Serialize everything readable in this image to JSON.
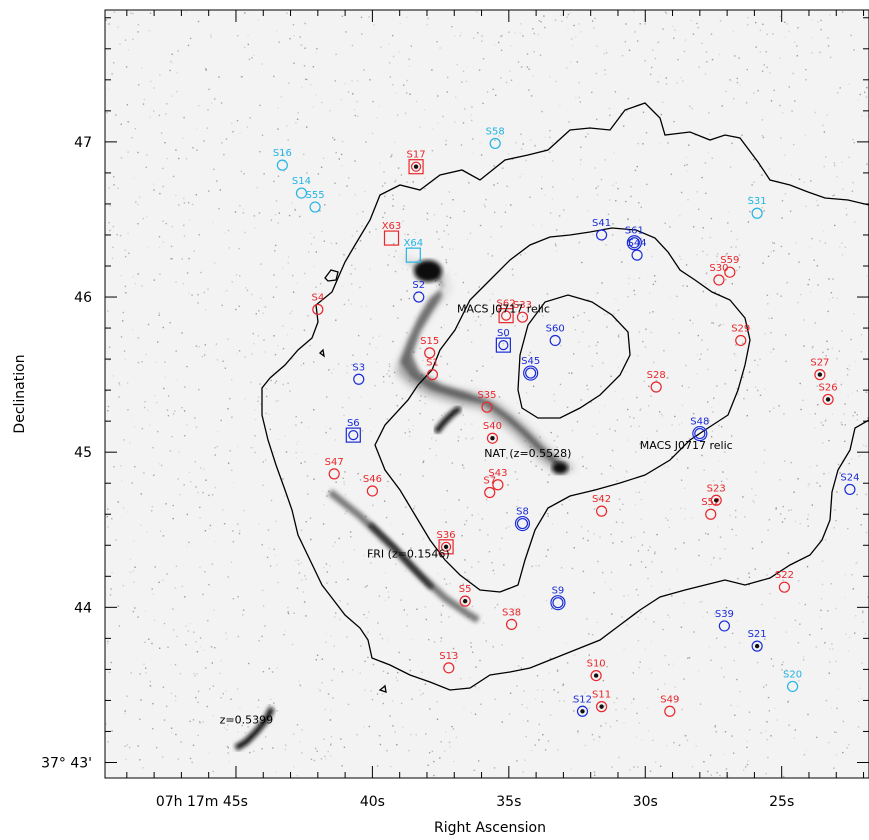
{
  "axes": {
    "xlabel": "Right Ascension",
    "ylabel": "Declination",
    "x_ticks": [
      {
        "label": "07h 17m 45s",
        "ra_s": 45
      },
      {
        "label": "40s",
        "ra_s": 40
      },
      {
        "label": "35s",
        "ra_s": 35
      },
      {
        "label": "30s",
        "ra_s": 30
      },
      {
        "label": "25s",
        "ra_s": 25
      }
    ],
    "y_ticks": [
      {
        "label": "47",
        "dec": 47
      },
      {
        "label": "46",
        "dec": 46
      },
      {
        "label": "45",
        "dec": 45
      },
      {
        "label": "44",
        "dec": 44
      },
      {
        "label": "37° 43'",
        "dec": 43
      }
    ],
    "ra_range_s": [
      49.8,
      21.8
    ],
    "dec_range_arcmin": [
      42.9,
      47.85
    ]
  },
  "colors": {
    "red": "#e8262b",
    "blue": "#1a2cd6",
    "cyan": "#21b4e6",
    "black": "#000000",
    "gray": "#555555"
  },
  "annotations": [
    {
      "text": "MACS J0717 relic",
      "ra": 36.9,
      "dec": 45.9
    },
    {
      "text": "MACS J0717 relic",
      "ra": 30.2,
      "dec": 45.02
    },
    {
      "text": "NAT (z=0.5528)",
      "ra": 35.9,
      "dec": 44.97
    },
    {
      "text": "FRI (z=0.1546)",
      "ra": 40.2,
      "dec": 44.32
    },
    {
      "text": "z=0.5399",
      "ra": 45.6,
      "dec": 43.25
    }
  ],
  "sources": [
    {
      "label": "S16",
      "color": "cyan",
      "ra": 43.3,
      "dec": 46.85,
      "shape": "circle"
    },
    {
      "label": "S14",
      "color": "cyan",
      "ra": 42.6,
      "dec": 46.67,
      "shape": "circle"
    },
    {
      "label": "S55",
      "color": "cyan",
      "ra": 42.1,
      "dec": 46.58,
      "shape": "circle"
    },
    {
      "label": "S58",
      "color": "cyan",
      "ra": 35.5,
      "dec": 46.99,
      "shape": "circle"
    },
    {
      "label": "S31",
      "color": "cyan",
      "ra": 25.9,
      "dec": 46.54,
      "shape": "circle"
    },
    {
      "label": "X64",
      "color": "cyan",
      "ra": 38.5,
      "dec": 46.27,
      "shape": "square"
    },
    {
      "label": "S20",
      "color": "cyan",
      "ra": 24.6,
      "dec": 43.49,
      "shape": "circle"
    },
    {
      "label": "S17",
      "color": "red",
      "ra": 38.4,
      "dec": 46.84,
      "shape": "square-dot"
    },
    {
      "label": "X63",
      "color": "red",
      "ra": 39.3,
      "dec": 46.38,
      "shape": "square"
    },
    {
      "label": "S4",
      "color": "red",
      "ra": 42.0,
      "dec": 45.92,
      "shape": "circle"
    },
    {
      "label": "S15",
      "color": "red",
      "ra": 37.9,
      "dec": 45.64,
      "shape": "circle"
    },
    {
      "label": "S1",
      "color": "red",
      "ra": 37.8,
      "dec": 45.5,
      "shape": "circle"
    },
    {
      "label": "S62",
      "color": "red",
      "ra": 35.1,
      "dec": 45.88,
      "shape": "square-circle"
    },
    {
      "label": "S33",
      "color": "red",
      "ra": 34.5,
      "dec": 45.87,
      "shape": "circle"
    },
    {
      "label": "S35",
      "color": "red",
      "ra": 35.8,
      "dec": 45.29,
      "shape": "circle"
    },
    {
      "label": "S40",
      "color": "red",
      "ra": 35.6,
      "dec": 45.09,
      "shape": "circle-dot"
    },
    {
      "label": "S7",
      "color": "red",
      "ra": 35.7,
      "dec": 44.74,
      "shape": "circle"
    },
    {
      "label": "S43",
      "color": "red",
      "ra": 35.4,
      "dec": 44.79,
      "shape": "circle"
    },
    {
      "label": "S47",
      "color": "red",
      "ra": 41.4,
      "dec": 44.86,
      "shape": "circle"
    },
    {
      "label": "S46",
      "color": "red",
      "ra": 40.0,
      "dec": 44.75,
      "shape": "circle"
    },
    {
      "label": "S36",
      "color": "red",
      "ra": 37.3,
      "dec": 44.39,
      "shape": "square-dot"
    },
    {
      "label": "S5",
      "color": "red",
      "ra": 36.6,
      "dec": 44.04,
      "shape": "circle-dot"
    },
    {
      "label": "S38",
      "color": "red",
      "ra": 34.9,
      "dec": 43.89,
      "shape": "circle"
    },
    {
      "label": "S13",
      "color": "red",
      "ra": 37.2,
      "dec": 43.61,
      "shape": "circle"
    },
    {
      "label": "S10",
      "color": "red",
      "ra": 31.8,
      "dec": 43.56,
      "shape": "circle-dot"
    },
    {
      "label": "S11",
      "color": "red",
      "ra": 31.6,
      "dec": 43.36,
      "shape": "circle-dot"
    },
    {
      "label": "S49",
      "color": "red",
      "ra": 29.1,
      "dec": 43.33,
      "shape": "circle"
    },
    {
      "label": "S42",
      "color": "red",
      "ra": 31.6,
      "dec": 44.62,
      "shape": "circle"
    },
    {
      "label": "S28",
      "color": "red",
      "ra": 29.6,
      "dec": 45.42,
      "shape": "circle"
    },
    {
      "label": "S29",
      "color": "red",
      "ra": 26.5,
      "dec": 45.72,
      "shape": "circle"
    },
    {
      "label": "S30",
      "color": "red",
      "ra": 27.3,
      "dec": 46.11,
      "shape": "circle"
    },
    {
      "label": "S59",
      "color": "red",
      "ra": 26.9,
      "dec": 46.16,
      "shape": "circle"
    },
    {
      "label": "S27",
      "color": "red",
      "ra": 23.6,
      "dec": 45.5,
      "shape": "circle-dot"
    },
    {
      "label": "S26",
      "color": "red",
      "ra": 23.3,
      "dec": 45.34,
      "shape": "circle-dot"
    },
    {
      "label": "S23",
      "color": "red",
      "ra": 27.4,
      "dec": 44.69,
      "shape": "circle-dot"
    },
    {
      "label": "S52",
      "color": "red",
      "ra": 27.6,
      "dec": 44.6,
      "shape": "circle"
    },
    {
      "label": "S22",
      "color": "red",
      "ra": 24.9,
      "dec": 44.13,
      "shape": "circle"
    },
    {
      "label": "S2",
      "color": "blue",
      "ra": 38.3,
      "dec": 46.0,
      "shape": "circle"
    },
    {
      "label": "S0",
      "color": "blue",
      "ra": 35.2,
      "dec": 45.69,
      "shape": "square-circle"
    },
    {
      "label": "S3",
      "color": "blue",
      "ra": 40.5,
      "dec": 45.47,
      "shape": "circle"
    },
    {
      "label": "S6",
      "color": "blue",
      "ra": 40.7,
      "dec": 45.11,
      "shape": "square-circle"
    },
    {
      "label": "S41",
      "color": "blue",
      "ra": 31.6,
      "dec": 46.4,
      "shape": "circle"
    },
    {
      "label": "S61",
      "color": "blue",
      "ra": 30.4,
      "dec": 46.35,
      "shape": "double-circle"
    },
    {
      "label": "S44",
      "color": "blue",
      "ra": 30.3,
      "dec": 46.27,
      "shape": "circle"
    },
    {
      "label": "S60",
      "color": "blue",
      "ra": 33.3,
      "dec": 45.72,
      "shape": "circle"
    },
    {
      "label": "S45",
      "color": "blue",
      "ra": 34.2,
      "dec": 45.51,
      "shape": "double-circle"
    },
    {
      "label": "S48",
      "color": "blue",
      "ra": 28.0,
      "dec": 45.12,
      "shape": "double-circle"
    },
    {
      "label": "S8",
      "color": "blue",
      "ra": 34.5,
      "dec": 44.54,
      "shape": "double-circle"
    },
    {
      "label": "S9",
      "color": "blue",
      "ra": 33.2,
      "dec": 44.03,
      "shape": "double-circle"
    },
    {
      "label": "S12",
      "color": "blue",
      "ra": 32.3,
      "dec": 43.33,
      "shape": "circle-dot"
    },
    {
      "label": "S39",
      "color": "blue",
      "ra": 27.1,
      "dec": 43.88,
      "shape": "circle"
    },
    {
      "label": "S21",
      "color": "blue",
      "ra": 25.9,
      "dec": 43.75,
      "shape": "circle-dot"
    },
    {
      "label": "S24",
      "color": "blue",
      "ra": 22.5,
      "dec": 44.76,
      "shape": "circle"
    }
  ]
}
